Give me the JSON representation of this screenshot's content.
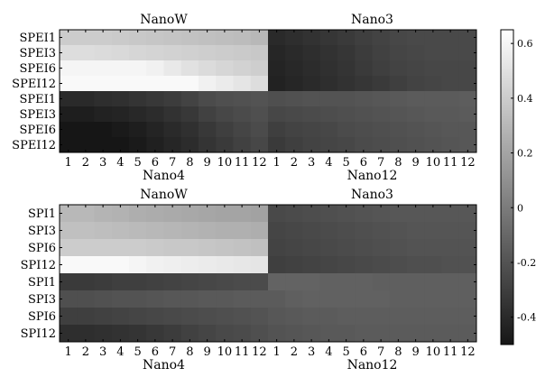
{
  "chart_data": [
    {
      "type": "heatmap",
      "panel": "top",
      "top_titles": [
        "NanoW",
        "Nano3"
      ],
      "bottom_titles": [
        "Nano4",
        "Nano12"
      ],
      "row_labels": [
        "SPEI1",
        "SPEI3",
        "SPEI6",
        "SPEI12",
        "SPEI1",
        "SPEI3",
        "SPEI6",
        "SPEI12"
      ],
      "x_ticks": [
        "1",
        "2",
        "3",
        "4",
        "5",
        "6",
        "7",
        "8",
        "9",
        "10",
        "11",
        "12",
        "1",
        "2",
        "3",
        "4",
        "5",
        "6",
        "7",
        "8",
        "9",
        "10",
        "11",
        "12"
      ],
      "values": [
        [
          0.4,
          0.4,
          0.4,
          0.39,
          0.38,
          0.37,
          0.36,
          0.35,
          0.34,
          0.33,
          0.32,
          0.3,
          -0.4,
          -0.38,
          -0.36,
          -0.34,
          -0.32,
          -0.3,
          -0.28,
          -0.26,
          -0.25,
          -0.25,
          -0.25,
          -0.25
        ],
        [
          0.48,
          0.48,
          0.47,
          0.46,
          0.45,
          0.44,
          0.43,
          0.42,
          0.41,
          0.4,
          0.39,
          0.38,
          -0.42,
          -0.4,
          -0.38,
          -0.36,
          -0.34,
          -0.31,
          -0.29,
          -0.27,
          -0.26,
          -0.25,
          -0.25,
          -0.25
        ],
        [
          0.6,
          0.6,
          0.6,
          0.6,
          0.6,
          0.58,
          0.54,
          0.5,
          0.47,
          0.45,
          0.43,
          0.41,
          -0.43,
          -0.41,
          -0.39,
          -0.37,
          -0.35,
          -0.32,
          -0.3,
          -0.28,
          -0.27,
          -0.26,
          -0.26,
          -0.26
        ],
        [
          0.62,
          0.62,
          0.62,
          0.62,
          0.62,
          0.62,
          0.62,
          0.62,
          0.58,
          0.55,
          0.52,
          0.48,
          -0.44,
          -0.42,
          -0.4,
          -0.38,
          -0.36,
          -0.34,
          -0.32,
          -0.3,
          -0.28,
          -0.27,
          -0.26,
          -0.26
        ],
        [
          -0.4,
          -0.4,
          -0.38,
          -0.37,
          -0.35,
          -0.33,
          -0.31,
          -0.28,
          -0.24,
          -0.22,
          -0.21,
          -0.2,
          -0.22,
          -0.21,
          -0.2,
          -0.2,
          -0.2,
          -0.19,
          -0.18,
          -0.17,
          -0.16,
          -0.16,
          -0.16,
          -0.15
        ],
        [
          -0.46,
          -0.46,
          -0.44,
          -0.43,
          -0.41,
          -0.39,
          -0.36,
          -0.33,
          -0.29,
          -0.26,
          -0.24,
          -0.22,
          -0.26,
          -0.25,
          -0.24,
          -0.23,
          -0.22,
          -0.21,
          -0.2,
          -0.19,
          -0.18,
          -0.17,
          -0.17,
          -0.16
        ],
        [
          -0.52,
          -0.52,
          -0.5,
          -0.48,
          -0.46,
          -0.43,
          -0.4,
          -0.37,
          -0.33,
          -0.3,
          -0.27,
          -0.24,
          -0.3,
          -0.28,
          -0.27,
          -0.26,
          -0.24,
          -0.23,
          -0.22,
          -0.21,
          -0.2,
          -0.19,
          -0.18,
          -0.18
        ],
        [
          -0.54,
          -0.54,
          -0.52,
          -0.5,
          -0.48,
          -0.45,
          -0.42,
          -0.39,
          -0.35,
          -0.32,
          -0.29,
          -0.26,
          -0.32,
          -0.3,
          -0.28,
          -0.27,
          -0.26,
          -0.24,
          -0.23,
          -0.22,
          -0.21,
          -0.2,
          -0.19,
          -0.18
        ]
      ]
    },
    {
      "type": "heatmap",
      "panel": "bottom",
      "top_titles": [
        "NanoW",
        "Nano3"
      ],
      "bottom_titles": [
        "Nano4",
        "Nano12"
      ],
      "row_labels": [
        "SPI1",
        "SPI3",
        "SPI6",
        "SPI12",
        "SPI1",
        "SPI3",
        "SPI6",
        "SPI12"
      ],
      "x_ticks": [
        "1",
        "2",
        "3",
        "4",
        "5",
        "6",
        "7",
        "8",
        "9",
        "10",
        "11",
        "12",
        "1",
        "2",
        "3",
        "4",
        "5",
        "6",
        "7",
        "8",
        "9",
        "10",
        "11",
        "12"
      ],
      "values": [
        [
          0.3,
          0.3,
          0.28,
          0.27,
          0.25,
          0.24,
          0.23,
          0.22,
          0.21,
          0.2,
          0.2,
          0.19,
          -0.25,
          -0.24,
          -0.23,
          -0.22,
          -0.21,
          -0.2,
          -0.19,
          -0.18,
          -0.18,
          -0.18,
          -0.18,
          -0.18
        ],
        [
          0.34,
          0.34,
          0.33,
          0.32,
          0.31,
          0.3,
          0.29,
          0.28,
          0.27,
          0.26,
          0.26,
          0.25,
          -0.27,
          -0.26,
          -0.25,
          -0.24,
          -0.23,
          -0.22,
          -0.21,
          -0.2,
          -0.19,
          -0.19,
          -0.19,
          -0.19
        ],
        [
          0.4,
          0.4,
          0.4,
          0.4,
          0.4,
          0.39,
          0.38,
          0.38,
          0.37,
          0.36,
          0.35,
          0.34,
          -0.28,
          -0.27,
          -0.26,
          -0.25,
          -0.24,
          -0.23,
          -0.22,
          -0.21,
          -0.2,
          -0.2,
          -0.2,
          -0.2
        ],
        [
          0.62,
          0.62,
          0.62,
          0.62,
          0.6,
          0.58,
          0.57,
          0.56,
          0.55,
          0.54,
          0.53,
          0.52,
          -0.3,
          -0.29,
          -0.28,
          -0.27,
          -0.26,
          -0.25,
          -0.24,
          -0.23,
          -0.22,
          -0.22,
          -0.21,
          -0.21
        ],
        [
          -0.32,
          -0.32,
          -0.31,
          -0.3,
          -0.3,
          -0.29,
          -0.28,
          -0.27,
          -0.26,
          -0.25,
          -0.24,
          -0.24,
          -0.12,
          -0.12,
          -0.12,
          -0.13,
          -0.13,
          -0.13,
          -0.14,
          -0.14,
          -0.14,
          -0.14,
          -0.14,
          -0.14
        ],
        [
          -0.22,
          -0.22,
          -0.21,
          -0.2,
          -0.2,
          -0.19,
          -0.18,
          -0.18,
          -0.17,
          -0.17,
          -0.16,
          -0.16,
          -0.16,
          -0.14,
          -0.13,
          -0.13,
          -0.13,
          -0.13,
          -0.13,
          -0.14,
          -0.14,
          -0.14,
          -0.14,
          -0.14
        ],
        [
          -0.3,
          -0.3,
          -0.29,
          -0.28,
          -0.27,
          -0.26,
          -0.25,
          -0.24,
          -0.23,
          -0.22,
          -0.21,
          -0.2,
          -0.18,
          -0.17,
          -0.16,
          -0.16,
          -0.15,
          -0.15,
          -0.15,
          -0.15,
          -0.15,
          -0.15,
          -0.15,
          -0.15
        ],
        [
          -0.38,
          -0.38,
          -0.37,
          -0.36,
          -0.35,
          -0.33,
          -0.31,
          -0.29,
          -0.27,
          -0.25,
          -0.24,
          -0.22,
          -0.2,
          -0.19,
          -0.18,
          -0.17,
          -0.17,
          -0.16,
          -0.16,
          -0.16,
          -0.16,
          -0.16,
          -0.16,
          -0.16
        ]
      ]
    }
  ],
  "colorbar": {
    "range": [
      -0.5,
      0.65
    ],
    "ticks": [
      {
        "value": 0.6,
        "label": "0.6"
      },
      {
        "value": 0.4,
        "label": "0.4"
      },
      {
        "value": 0.2,
        "label": "0.2"
      },
      {
        "value": 0,
        "label": "0"
      },
      {
        "value": -0.2,
        "label": "-0.2"
      },
      {
        "value": -0.4,
        "label": "-0.4"
      }
    ],
    "colormap": "gray"
  }
}
